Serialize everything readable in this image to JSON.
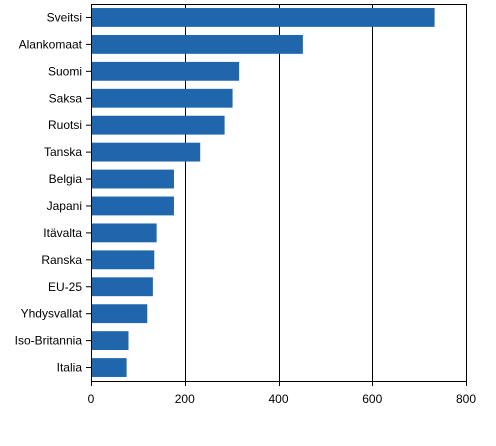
{
  "chart_data": {
    "type": "bar",
    "orientation": "horizontal",
    "categories": [
      "Sveitsi",
      "Alankomaat",
      "Suomi",
      "Saksa",
      "Ruotsi",
      "Tanska",
      "Belgia",
      "Japani",
      "Itävalta",
      "Ranska",
      "EU-25",
      "Yhdysvallat",
      "Iso-Britannia",
      "Italia"
    ],
    "values": [
      733,
      452,
      316,
      302,
      285,
      233,
      177,
      177,
      140,
      135,
      132,
      120,
      80,
      76
    ],
    "title": "",
    "xlabel": "",
    "ylabel": "",
    "xlim": [
      0,
      800
    ],
    "xticks": [
      0,
      200,
      400,
      600,
      800
    ],
    "xtick_labels": [
      "0",
      "200",
      "400",
      "600",
      "800"
    ],
    "grid": "vertical",
    "legend": "none",
    "bar_color": "#1f66ad",
    "gridline_color": "#000000"
  }
}
